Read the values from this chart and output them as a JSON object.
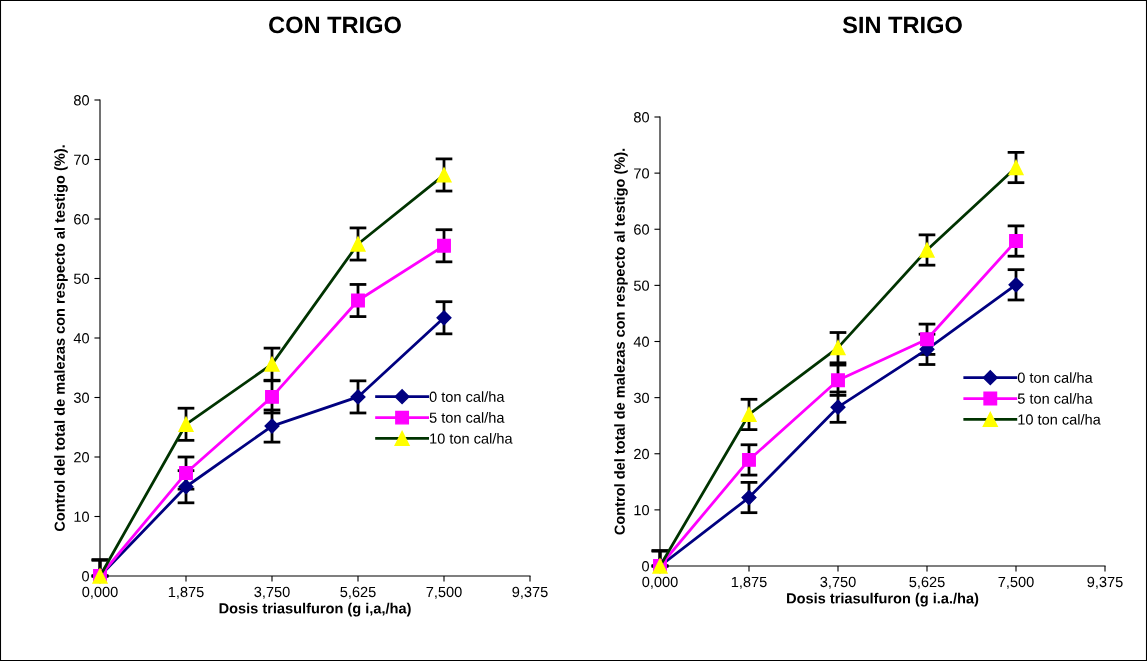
{
  "chart_data": [
    {
      "type": "line",
      "title": "CON TRIGO",
      "xlabel": "Dosis triasulfuron (g i,a,/ha)",
      "ylabel": "Control del total de malezas con respecto al testigo (%).",
      "x": [
        0,
        1.875,
        3.75,
        5.625,
        7.5
      ],
      "xlim": [
        0,
        9.375
      ],
      "xticks": [
        {
          "value": 0,
          "label": "0,000"
        },
        {
          "value": 1.875,
          "label": "1,875"
        },
        {
          "value": 3.75,
          "label": "3,750"
        },
        {
          "value": 5.625,
          "label": "5,625"
        },
        {
          "value": 7.5,
          "label": "7,500"
        },
        {
          "value": 9.375,
          "label": "9,375"
        }
      ],
      "ylim": [
        0,
        80
      ],
      "yticks": [
        0,
        10,
        20,
        30,
        40,
        50,
        60,
        70,
        80
      ],
      "grid": false,
      "legend": "right",
      "series": [
        {
          "name": "0 ton cal/ha",
          "color": "#000080",
          "marker": "diamond",
          "values": [
            0,
            15.0,
            25.2,
            30.1,
            43.4
          ],
          "errors": [
            [
              0,
              2.7
            ],
            2.7,
            2.7,
            2.7,
            2.7
          ]
        },
        {
          "name": "5 ton cal/ha",
          "color": "#ff00ff",
          "marker": "square",
          "values": [
            0,
            17.3,
            30.1,
            46.3,
            55.5
          ],
          "errors": [
            [
              0,
              2.7
            ],
            2.7,
            2.7,
            2.7,
            2.7
          ]
        },
        {
          "name": "10 ton cal/ha",
          "color": "#003300",
          "marker": "triangle",
          "values": [
            0,
            25.5,
            35.6,
            55.8,
            67.4
          ],
          "errors": [
            [
              0,
              2.7
            ],
            2.7,
            2.7,
            2.7,
            2.7
          ]
        }
      ]
    },
    {
      "type": "line",
      "title": "SIN TRIGO",
      "xlabel": "Dosis triasulfuron (g i.a./ha)",
      "ylabel": "Control del total de malezas con respecto al testigo (%).",
      "x": [
        0,
        1.875,
        3.75,
        5.625,
        7.5
      ],
      "xlim": [
        0,
        9.375
      ],
      "xticks": [
        {
          "value": 0,
          "label": "0,000"
        },
        {
          "value": 1.875,
          "label": "1,875"
        },
        {
          "value": 3.75,
          "label": "3,750"
        },
        {
          "value": 5.625,
          "label": "5,625"
        },
        {
          "value": 7.5,
          "label": "7,500"
        },
        {
          "value": 9.375,
          "label": "9,375"
        }
      ],
      "ylim": [
        0,
        80
      ],
      "yticks": [
        0,
        10,
        20,
        30,
        40,
        50,
        60,
        70,
        80
      ],
      "grid": false,
      "legend": "right",
      "series": [
        {
          "name": "0 ton cal/ha",
          "color": "#000080",
          "marker": "diamond",
          "values": [
            0,
            12.2,
            28.3,
            38.6,
            50.1
          ],
          "errors": [
            [
              0,
              2.7
            ],
            2.7,
            2.7,
            2.7,
            2.7
          ]
        },
        {
          "name": "5 ton cal/ha",
          "color": "#ff00ff",
          "marker": "square",
          "values": [
            0,
            18.9,
            33.1,
            40.4,
            57.9
          ],
          "errors": [
            [
              0,
              2.7
            ],
            2.7,
            2.7,
            2.7,
            2.7
          ]
        },
        {
          "name": "10 ton cal/ha",
          "color": "#003300",
          "marker": "triangle",
          "values": [
            0,
            27.0,
            38.9,
            56.3,
            71.0
          ],
          "errors": [
            [
              0,
              2.7
            ],
            2.7,
            2.7,
            2.7,
            2.7
          ]
        }
      ]
    }
  ]
}
